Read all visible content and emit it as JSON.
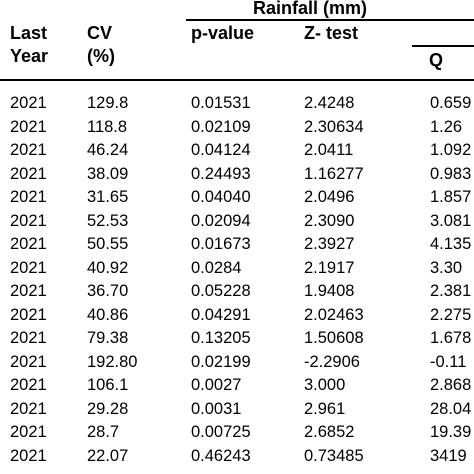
{
  "table": {
    "group_header": "Rainfall (mm)",
    "headers": {
      "last_year": [
        "Last",
        "Year"
      ],
      "cv": [
        "CV",
        "(%)"
      ],
      "p_value": "p-value",
      "z_test": "Z- test",
      "q": "Q"
    },
    "rows": [
      [
        "2021",
        "129.8",
        "0.01531",
        "2.4248",
        "0.659"
      ],
      [
        "2021",
        "118.8",
        "0.02109",
        "2.30634",
        "1.26"
      ],
      [
        "2021",
        "46.24",
        "0.04124",
        "2.0411",
        "1.092"
      ],
      [
        "2021",
        "38.09",
        "0.24493",
        "1.16277",
        "0.983"
      ],
      [
        "2021",
        "31.65",
        "0.04040",
        "2.0496",
        "1.857"
      ],
      [
        "2021",
        "52.53",
        "0.02094",
        "2.3090",
        "3.081"
      ],
      [
        "2021",
        "50.55",
        "0.01673",
        "2.3927",
        "4.135"
      ],
      [
        "2021",
        "40.92",
        "0.0284",
        "2.1917",
        "3.30"
      ],
      [
        "2021",
        "36.70",
        "0.05228",
        "1.9408",
        "2.381"
      ],
      [
        "2021",
        "40.86",
        "0.04291",
        "2.02463",
        "2.275"
      ],
      [
        "2021",
        "79.38",
        "0.13205",
        "1.50608",
        "1.678"
      ],
      [
        "2021",
        "192.80",
        "0.02199",
        "-2.2906",
        "-0.11"
      ],
      [
        "2021",
        "106.1",
        "0.0027",
        "3.000",
        "2.868"
      ],
      [
        "2021",
        "29.28",
        "0.0031",
        "2.961",
        "28.04"
      ],
      [
        "2021",
        "28.7",
        "0.00725",
        "2.6852",
        "19.39"
      ],
      [
        "2021",
        "22.07",
        "0.46243",
        "0.73485",
        "3419"
      ]
    ]
  }
}
